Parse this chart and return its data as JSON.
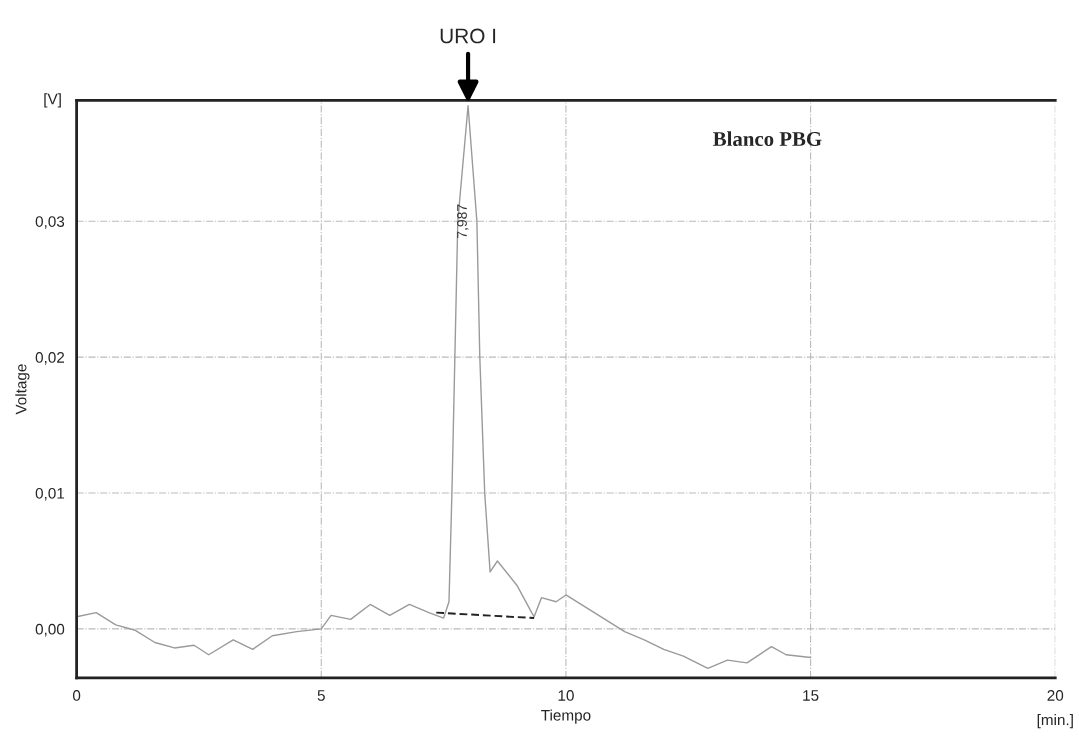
{
  "chart_data": {
    "type": "line",
    "xlabel": "Tiempo",
    "ylabel": "Voltage",
    "series": [
      {
        "color": "#9a9a9a",
        "x": [
          0,
          0.4,
          0.8,
          1.2,
          1.6,
          2.0,
          2.4,
          2.7,
          3.2,
          3.6,
          4.0,
          4.5,
          5.0,
          5.2,
          5.6,
          6.0,
          6.4,
          6.8,
          7.2,
          7.5,
          7.61,
          7.67,
          7.73,
          7.79,
          8.0,
          8.18,
          8.24,
          8.34,
          8.45,
          8.6,
          9.0,
          9.3,
          9.35,
          9.5,
          9.8,
          10.0,
          10.4,
          10.8,
          11.2,
          11.6,
          12.0,
          12.4,
          12.9,
          13.3,
          13.7,
          14.2,
          14.5,
          15.0
        ],
        "values": [
          0.0009,
          0.0012,
          0.0003,
          -0.0001,
          -0.001,
          -0.0014,
          -0.0012,
          -0.0019,
          -0.0008,
          -0.0015,
          -0.0005,
          -0.0002,
          0.0,
          0.001,
          0.0007,
          0.0018,
          0.001,
          0.0018,
          0.0012,
          0.0008,
          0.002,
          0.01,
          0.02,
          0.03,
          0.0385,
          0.03,
          0.02,
          0.01,
          0.0042,
          0.005,
          0.0032,
          0.0012,
          0.0009,
          0.0023,
          0.002,
          0.0025,
          0.0016,
          0.0007,
          -0.0002,
          -0.0008,
          -0.0015,
          -0.002,
          -0.0029,
          -0.0023,
          -0.0025,
          -0.0013,
          -0.0019,
          -0.0021
        ]
      },
      {
        "type": "line",
        "color": "#222222",
        "line_style": "dashed",
        "x": [
          7.35,
          9.35
        ],
        "values": [
          0.0012,
          0.0008
        ]
      }
    ],
    "xlim": [
      0,
      20
    ],
    "ylim": [
      -0.0036,
      0.0389
    ],
    "xticks": [
      0,
      5,
      10,
      15,
      20
    ],
    "yticks": [
      {
        "value": 0,
        "label": "0,00"
      },
      {
        "value": 0.01,
        "label": "0,01"
      },
      {
        "value": 0.02,
        "label": "0,02"
      },
      {
        "value": 0.03,
        "label": "0,03"
      }
    ],
    "grid": true,
    "annotations": [
      {
        "text": "URO I",
        "x": 8.0,
        "y": 0.0385
      },
      {
        "text": "7,987",
        "x": 7.9,
        "y": 0.03
      },
      "Blanco PBG",
      "[V]",
      "[min.]"
    ]
  }
}
